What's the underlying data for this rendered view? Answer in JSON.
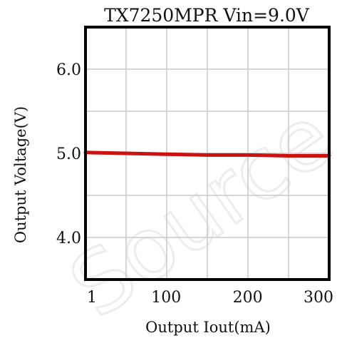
{
  "chart_data": {
    "type": "line",
    "title": "TX7250MPR Vin=9.0V",
    "xlabel": "Output Iout(mA)",
    "ylabel": "Output Voltage(V)",
    "xlim": [
      1,
      300
    ],
    "ylim": [
      3.5,
      6.5
    ],
    "x_ticks": [
      "1",
      "100",
      "200",
      "300"
    ],
    "y_ticks": [
      "4.0",
      "5.0",
      "6.0"
    ],
    "grid": true,
    "series": [
      {
        "color": "#cc1111",
        "x": [
          1,
          50,
          100,
          150,
          200,
          250,
          300
        ],
        "y": [
          5.01,
          5.0,
          4.99,
          4.98,
          4.98,
          4.97,
          4.97
        ]
      }
    ]
  },
  "watermark": "Source"
}
